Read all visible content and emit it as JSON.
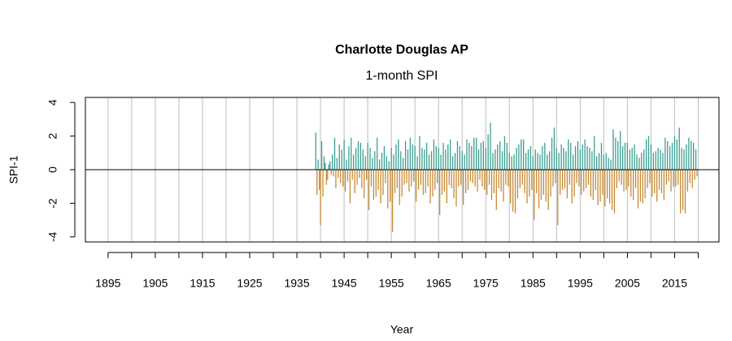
{
  "chart_data": {
    "type": "spi-bar",
    "title": "Charlotte Douglas AP",
    "subtitle": "1-month SPI",
    "x_label": "Year",
    "y_label": "SPI-1",
    "positive_color": "#3a9e91",
    "negative_color": "#c58a35",
    "xlim": [
      1890.2,
      2024.4
    ],
    "ylim": [
      -4.3,
      4.3
    ],
    "xticks": [
      1895,
      1905,
      1915,
      1925,
      1935,
      1945,
      1955,
      1965,
      1975,
      1985,
      1995,
      2005,
      2015
    ],
    "xgrid": [
      1895,
      1900,
      1905,
      1910,
      1915,
      1920,
      1925,
      1930,
      1935,
      1940,
      1945,
      1950,
      1955,
      1960,
      1965,
      1970,
      1975,
      1980,
      1985,
      1990,
      1995,
      2000,
      2005,
      2010,
      2015,
      2020
    ],
    "yticks": [
      -4,
      -2,
      0,
      2,
      4
    ],
    "x": [
      1939,
      1939.25,
      1939.5,
      1939.75,
      1940,
      1940.25,
      1940.5,
      1940.75,
      1941,
      1941.25,
      1941.5,
      1941.75,
      1942,
      1942.25,
      1942.5,
      1942.75,
      1943,
      1943.25,
      1943.5,
      1943.75,
      1944,
      1944.25,
      1944.5,
      1944.75,
      1945,
      1945.25,
      1945.5,
      1945.75,
      1946,
      1946.25,
      1946.5,
      1946.75,
      1947,
      1947.25,
      1947.5,
      1947.75,
      1948,
      1948.25,
      1948.5,
      1948.75,
      1949,
      1949.25,
      1949.5,
      1949.75,
      1950,
      1950.25,
      1950.5,
      1950.75,
      1951,
      1951.25,
      1951.5,
      1951.75,
      1952,
      1952.25,
      1952.5,
      1952.75,
      1953,
      1953.25,
      1953.5,
      1953.75,
      1954,
      1954.25,
      1954.5,
      1954.75,
      1955,
      1955.25,
      1955.5,
      1955.75,
      1956,
      1956.25,
      1956.5,
      1956.75,
      1957,
      1957.25,
      1957.5,
      1957.75,
      1958,
      1958.25,
      1958.5,
      1958.75,
      1959,
      1959.25,
      1959.5,
      1959.75,
      1960,
      1960.25,
      1960.5,
      1960.75,
      1961,
      1961.25,
      1961.5,
      1961.75,
      1962,
      1962.25,
      1962.5,
      1962.75,
      1963,
      1963.25,
      1963.5,
      1963.75,
      1964,
      1964.25,
      1964.5,
      1964.75,
      1965,
      1965.25,
      1965.5,
      1965.75,
      1966,
      1966.25,
      1966.5,
      1966.75,
      1967,
      1967.25,
      1967.5,
      1967.75,
      1968,
      1968.25,
      1968.5,
      1968.75,
      1969,
      1969.25,
      1969.5,
      1969.75,
      1970,
      1970.25,
      1970.5,
      1970.75,
      1971,
      1971.25,
      1971.5,
      1971.75,
      1972,
      1972.25,
      1972.5,
      1972.75,
      1973,
      1973.25,
      1973.5,
      1973.75,
      1974,
      1974.25,
      1974.5,
      1974.75,
      1975,
      1975.25,
      1975.5,
      1975.75,
      1976,
      1976.25,
      1976.5,
      1976.75,
      1977,
      1977.25,
      1977.5,
      1977.75,
      1978,
      1978.25,
      1978.5,
      1978.75,
      1979,
      1979.25,
      1979.5,
      1979.75,
      1980,
      1980.25,
      1980.5,
      1980.75,
      1981,
      1981.25,
      1981.5,
      1981.75,
      1982,
      1982.25,
      1982.5,
      1982.75,
      1983,
      1983.25,
      1983.5,
      1983.75,
      1984,
      1984.25,
      1984.5,
      1984.75,
      1985,
      1985.25,
      1985.5,
      1985.75,
      1986,
      1986.25,
      1986.5,
      1986.75,
      1987,
      1987.25,
      1987.5,
      1987.75,
      1988,
      1988.25,
      1988.5,
      1988.75,
      1989,
      1989.25,
      1989.5,
      1989.75,
      1990,
      1990.25,
      1990.5,
      1990.75,
      1991,
      1991.25,
      1991.5,
      1991.75,
      1992,
      1992.25,
      1992.5,
      1992.75,
      1993,
      1993.25,
      1993.5,
      1993.75,
      1994,
      1994.25,
      1994.5,
      1994.75,
      1995,
      1995.25,
      1995.5,
      1995.75,
      1996,
      1996.25,
      1996.5,
      1996.75,
      1997,
      1997.25,
      1997.5,
      1997.75,
      1998,
      1998.25,
      1998.5,
      1998.75,
      1999,
      1999.25,
      1999.5,
      1999.75,
      2000,
      2000.25,
      2000.5,
      2000.75,
      2001,
      2001.25,
      2001.5,
      2001.75,
      2002,
      2002.25,
      2002.5,
      2002.75,
      2003,
      2003.25,
      2003.5,
      2003.75,
      2004,
      2004.25,
      2004.5,
      2004.75,
      2005,
      2005.25,
      2005.5,
      2005.75,
      2006,
      2006.25,
      2006.5,
      2006.75,
      2007,
      2007.25,
      2007.5,
      2007.75,
      2008,
      2008.25,
      2008.5,
      2008.75,
      2009,
      2009.25,
      2009.5,
      2009.75,
      2010,
      2010.25,
      2010.5,
      2010.75,
      2011,
      2011.25,
      2011.5,
      2011.75,
      2012,
      2012.25,
      2012.5,
      2012.75,
      2013,
      2013.25,
      2013.5,
      2013.75,
      2014,
      2014.25,
      2014.5,
      2014.75,
      2015,
      2015.25,
      2015.5,
      2015.75,
      2016,
      2016.25,
      2016.5,
      2016.75,
      2017,
      2017.25,
      2017.5,
      2017.75,
      2018,
      2018.25,
      2018.5,
      2018.75,
      2019,
      2019.25,
      2019.5,
      2019.75
    ],
    "values": [
      2.2,
      -1.5,
      0.6,
      -1.2,
      -3.3,
      1.7,
      -1.6,
      0.8,
      0.4,
      -0.9,
      -0.6,
      0.3,
      0.5,
      -0.3,
      0.9,
      -0.4,
      1.9,
      -1.1,
      0.7,
      -0.5,
      1.5,
      -0.8,
      1.2,
      -1.0,
      1.8,
      -1.3,
      0.6,
      -0.7,
      1.4,
      -2.0,
      1.9,
      -0.6,
      0.9,
      -1.4,
      1.3,
      -0.9,
      1.7,
      -0.5,
      1.6,
      -1.1,
      1.2,
      -1.7,
      0.8,
      -0.6,
      1.6,
      -2.4,
      1.3,
      -1.0,
      0.7,
      -1.8,
      1.1,
      -1.6,
      1.9,
      -1.2,
      0.6,
      -2.0,
      1.0,
      -1.5,
      1.4,
      -0.8,
      0.8,
      -2.3,
      0.5,
      -1.9,
      1.3,
      -3.7,
      0.9,
      -1.4,
      1.5,
      -1.1,
      1.8,
      -2.1,
      1.1,
      -1.6,
      0.7,
      -0.9,
      1.7,
      -0.8,
      1.2,
      -1.3,
      1.9,
      -1.0,
      1.5,
      -0.7,
      1.4,
      -1.9,
      0.8,
      -1.2,
      2.0,
      -0.9,
      1.3,
      -1.5,
      1.2,
      -1.4,
      1.6,
      -1.0,
      0.9,
      -2.0,
      1.1,
      -1.6,
      1.8,
      -1.2,
      1.4,
      -0.8,
      1.3,
      -2.7,
      0.9,
      -1.5,
      1.6,
      -1.3,
      1.2,
      -2.0,
      1.5,
      -0.9,
      1.8,
      -1.1,
      0.8,
      -1.7,
      1.0,
      -2.2,
      1.7,
      -1.0,
      1.4,
      -0.9,
      1.1,
      -2.1,
      0.9,
      -1.4,
      1.8,
      -1.2,
      1.6,
      -0.7,
      1.4,
      -0.8,
      1.9,
      -1.0,
      1.9,
      -1.3,
      1.2,
      -0.6,
      1.6,
      -1.0,
      1.7,
      -1.2,
      1.3,
      -1.5,
      2.1,
      -0.9,
      2.8,
      -1.8,
      1.0,
      -1.4,
      1.2,
      -2.4,
      1.5,
      -1.1,
      1.7,
      -1.3,
      1.1,
      -1.9,
      2.0,
      -0.9,
      1.6,
      -1.0,
      1.0,
      -2.0,
      0.8,
      -2.5,
      0.9,
      -2.6,
      1.3,
      -1.7,
      1.5,
      -1.1,
      1.8,
      -0.9,
      1.8,
      -1.4,
      1.0,
      -2.0,
      1.2,
      -1.6,
      1.4,
      -1.2,
      0.8,
      -3.0,
      1.2,
      -1.4,
      1.0,
      -2.3,
      0.9,
      -1.8,
      1.4,
      -1.5,
      1.6,
      -1.9,
      0.9,
      -2.4,
      1.1,
      -1.6,
      1.9,
      -1.0,
      2.5,
      -0.8,
      1.3,
      -3.3,
      1.0,
      -1.5,
      1.5,
      -1.2,
      1.3,
      -1.1,
      1.1,
      -1.7,
      1.8,
      -0.9,
      1.6,
      -2.0,
      0.9,
      -1.6,
      1.4,
      -0.8,
      1.7,
      -1.0,
      1.2,
      -1.5,
      1.5,
      -1.3,
      1.8,
      -1.1,
      1.4,
      -0.9,
      1.3,
      -1.6,
      1.1,
      -1.8,
      2.0,
      -1.2,
      0.8,
      -2.1,
      1.0,
      -1.9,
      1.6,
      -1.5,
      0.9,
      -2.2,
      1.0,
      -1.7,
      0.7,
      -2.0,
      0.6,
      -2.4,
      2.4,
      -2.6,
      1.9,
      -1.1,
      1.7,
      -0.7,
      2.3,
      -0.9,
      1.4,
      -1.3,
      1.6,
      -1.2,
      1.6,
      -1.0,
      1.2,
      -1.6,
      1.3,
      -1.8,
      1.5,
      -1.1,
      0.9,
      -2.3,
      0.7,
      -1.9,
      1.0,
      -2.0,
      1.2,
      -1.7,
      1.8,
      -1.1,
      2.0,
      -0.8,
      1.5,
      -1.6,
      1.0,
      -1.4,
      1.1,
      -1.9,
      1.3,
      -1.2,
      1.2,
      -1.4,
      1.0,
      -1.8,
      1.9,
      -0.9,
      1.7,
      -0.7,
      1.4,
      -1.3,
      1.6,
      -1.0,
      2.0,
      -1.0,
      1.8,
      -0.9,
      2.5,
      -2.6,
      1.3,
      -2.4,
      1.2,
      -2.6,
      1.5,
      -1.3,
      1.9,
      -0.8,
      1.7,
      -1.1,
      1.6,
      -0.6,
      1.2,
      -0.4
    ]
  }
}
